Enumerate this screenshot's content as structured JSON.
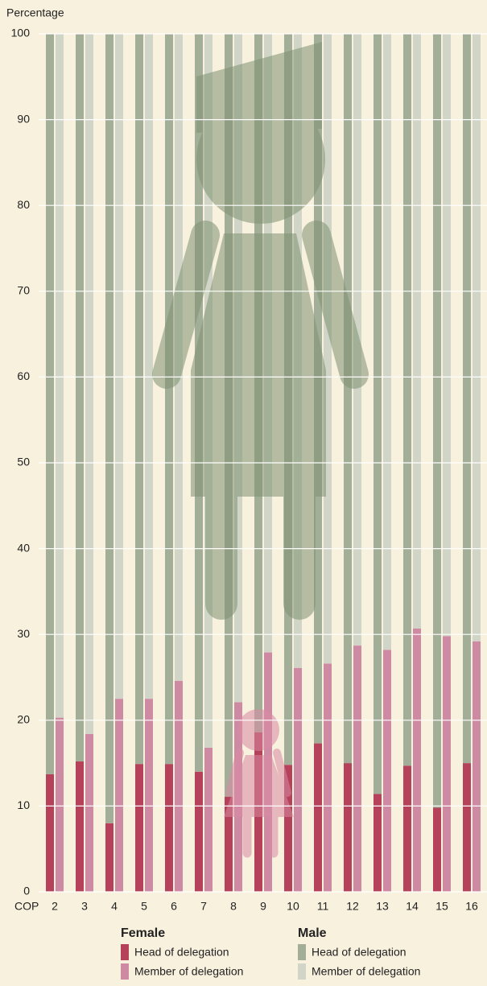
{
  "chart_data": {
    "type": "bar",
    "y_label": "Percentage",
    "x_label": "COP",
    "categories": [
      "2",
      "3",
      "4",
      "5",
      "6",
      "7",
      "8",
      "9",
      "10",
      "11",
      "12",
      "13",
      "14",
      "15",
      "16"
    ],
    "ylim": [
      0,
      100
    ],
    "yticks": [
      0,
      10,
      20,
      30,
      40,
      50,
      60,
      70,
      80,
      90,
      100
    ],
    "grid": true,
    "legend_groups": [
      "Female",
      "Male"
    ],
    "series": [
      {
        "name": "Head of delegation",
        "color": "#b5415a",
        "values": [
          13.7,
          15.2,
          8.0,
          14.9,
          14.9,
          14.0,
          11.1,
          18.6,
          14.8,
          17.3,
          15.0,
          11.4,
          14.7,
          9.8,
          15.0
        ]
      },
      {
        "name": "Member of delegation",
        "color": "#cf8aa3",
        "values": [
          20.3,
          18.4,
          22.5,
          22.5,
          24.6,
          16.8,
          22.1,
          27.9,
          26.1,
          26.6,
          28.7,
          28.2,
          30.7,
          29.8,
          29.2
        ]
      },
      {
        "name": "Head of delegation",
        "color": "#a3ae98",
        "values": [
          86.3,
          84.8,
          92.0,
          85.1,
          85.1,
          86.0,
          88.9,
          81.4,
          85.2,
          82.7,
          85.0,
          88.6,
          85.3,
          90.2,
          85.0
        ]
      },
      {
        "name": "Member of delegation",
        "color": "#d1d5c7",
        "values": [
          79.7,
          81.6,
          77.5,
          77.5,
          75.4,
          83.2,
          77.9,
          72.1,
          73.9,
          73.4,
          71.3,
          71.8,
          69.3,
          70.2,
          70.8
        ]
      }
    ]
  }
}
